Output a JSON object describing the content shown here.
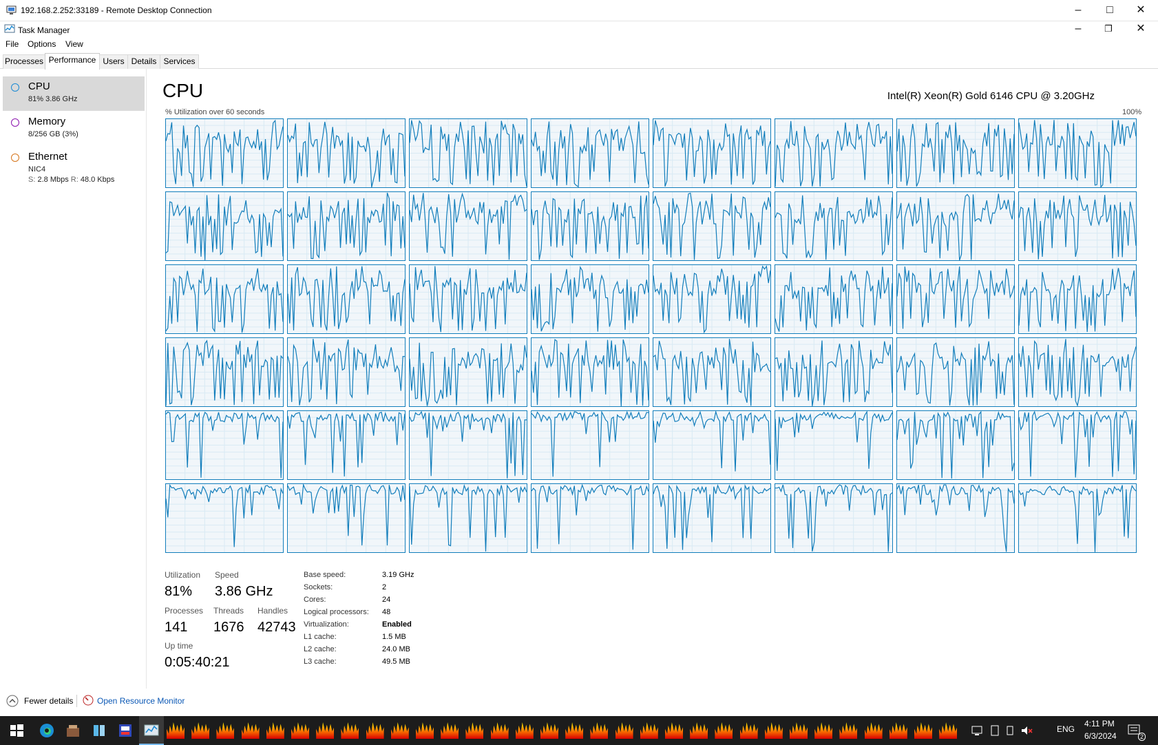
{
  "rdp": {
    "title": "192.168.2.252:33189 - Remote Desktop Connection"
  },
  "taskmanager": {
    "title": "Task Manager"
  },
  "menu": {
    "file": "File",
    "options": "Options",
    "view": "View"
  },
  "tabs": [
    {
      "label": "Processes"
    },
    {
      "label": "Performance",
      "active": true
    },
    {
      "label": "Users"
    },
    {
      "label": "Details"
    },
    {
      "label": "Services"
    }
  ],
  "sidebar": {
    "cpu": {
      "name": "CPU",
      "sub": "81% 3.86 GHz",
      "color": "#1a8ad4"
    },
    "memory": {
      "name": "Memory",
      "sub": "8/256 GB (3%)",
      "color": "#8b12ae"
    },
    "ethernet": {
      "name": "Ethernet",
      "sub": "NIC4",
      "send_label": "S:",
      "send": "2.8 Mbps",
      "recv_label": "R:",
      "recv": "48.0 Kbps",
      "color": "#d6741a"
    }
  },
  "main": {
    "title": "CPU",
    "model": "Intel(R) Xeon(R) Gold 6146 CPU @ 3.20GHz",
    "util_label": "% Utilization over 60 seconds",
    "max_label": "100%",
    "graph_color": "#117dbb",
    "graph_count": 48
  },
  "stats": {
    "utilization_label": "Utilization",
    "utilization": "81%",
    "speed_label": "Speed",
    "speed": "3.86 GHz",
    "processes_label": "Processes",
    "processes": "141",
    "threads_label": "Threads",
    "threads": "1676",
    "handles_label": "Handles",
    "handles": "42743",
    "uptime_label": "Up time",
    "uptime": "0:05:40:21"
  },
  "specs": [
    {
      "k": "Base speed:",
      "v": "3.19 GHz"
    },
    {
      "k": "Sockets:",
      "v": "2"
    },
    {
      "k": "Cores:",
      "v": "24"
    },
    {
      "k": "Logical processors:",
      "v": "48"
    },
    {
      "k": "Virtualization:",
      "v": "Enabled"
    },
    {
      "k": "L1 cache:",
      "v": "1.5 MB"
    },
    {
      "k": "L2 cache:",
      "v": "24.0 MB"
    },
    {
      "k": "L3 cache:",
      "v": "49.5 MB"
    }
  ],
  "footer": {
    "fewer": "Fewer details",
    "resmon": "Open Resource Monitor"
  },
  "taskbar": {
    "lang": "ENG",
    "time": "4:11 PM",
    "date": "6/3/2024",
    "notif_count": "2",
    "fire_count": 32
  }
}
